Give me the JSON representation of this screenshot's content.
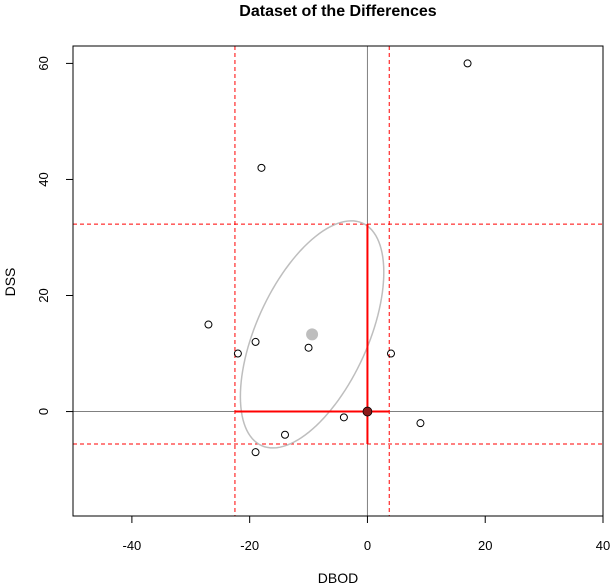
{
  "chart_data": {
    "type": "scatter",
    "title": "Dataset of the Differences",
    "xlabel": "DBOD",
    "ylabel": "DSS",
    "xlim": [
      -50,
      40
    ],
    "ylim": [
      -18,
      63
    ],
    "x_ticks": [
      -40,
      -20,
      0,
      20,
      40
    ],
    "y_ticks": [
      0,
      20,
      40,
      60
    ],
    "x_tick_labels": [
      "-40",
      "-20",
      "0",
      "20",
      "40"
    ],
    "y_tick_labels": [
      "0",
      "20",
      "40",
      "60"
    ],
    "grid": false,
    "points": [
      {
        "x": 17,
        "y": 60
      },
      {
        "x": -18,
        "y": 42
      },
      {
        "x": -27,
        "y": 15
      },
      {
        "x": -19,
        "y": 12
      },
      {
        "x": -22,
        "y": 10
      },
      {
        "x": -10,
        "y": 11
      },
      {
        "x": 4,
        "y": 10
      },
      {
        "x": -4,
        "y": -1
      },
      {
        "x": 9,
        "y": -2
      },
      {
        "x": -14,
        "y": -4
      },
      {
        "x": -19,
        "y": -7
      }
    ],
    "point_style": {
      "shape": "open-circle",
      "color": "#000000"
    },
    "mean": {
      "x": -9.4,
      "y": 13.3,
      "color": "#bebebe"
    },
    "origin": {
      "x": 0,
      "y": 0,
      "color": "#8b1a1a"
    },
    "reference_lines": {
      "vertical": [
        0
      ],
      "horizontal": [
        0
      ],
      "color": "#808080"
    },
    "interval_lines": {
      "vertical": [
        -22.5,
        3.7
      ],
      "horizontal": [
        -5.6,
        32.3
      ],
      "color": "#ff0000",
      "style": "dashed"
    },
    "ellipse": {
      "center": {
        "x": -9.4,
        "y": 13.3
      },
      "semi_axes": [
        21,
        9.5
      ],
      "rotation_deg": 66,
      "color": "#bebebe"
    },
    "red_segments": [
      {
        "from": {
          "x": -22.5,
          "y": 0
        },
        "to": {
          "x": 3.7,
          "y": 0
        }
      },
      {
        "from": {
          "x": 0,
          "y": -5.6
        },
        "to": {
          "x": 0,
          "y": 32.3
        }
      }
    ],
    "red_segment_color": "#ff0000"
  }
}
